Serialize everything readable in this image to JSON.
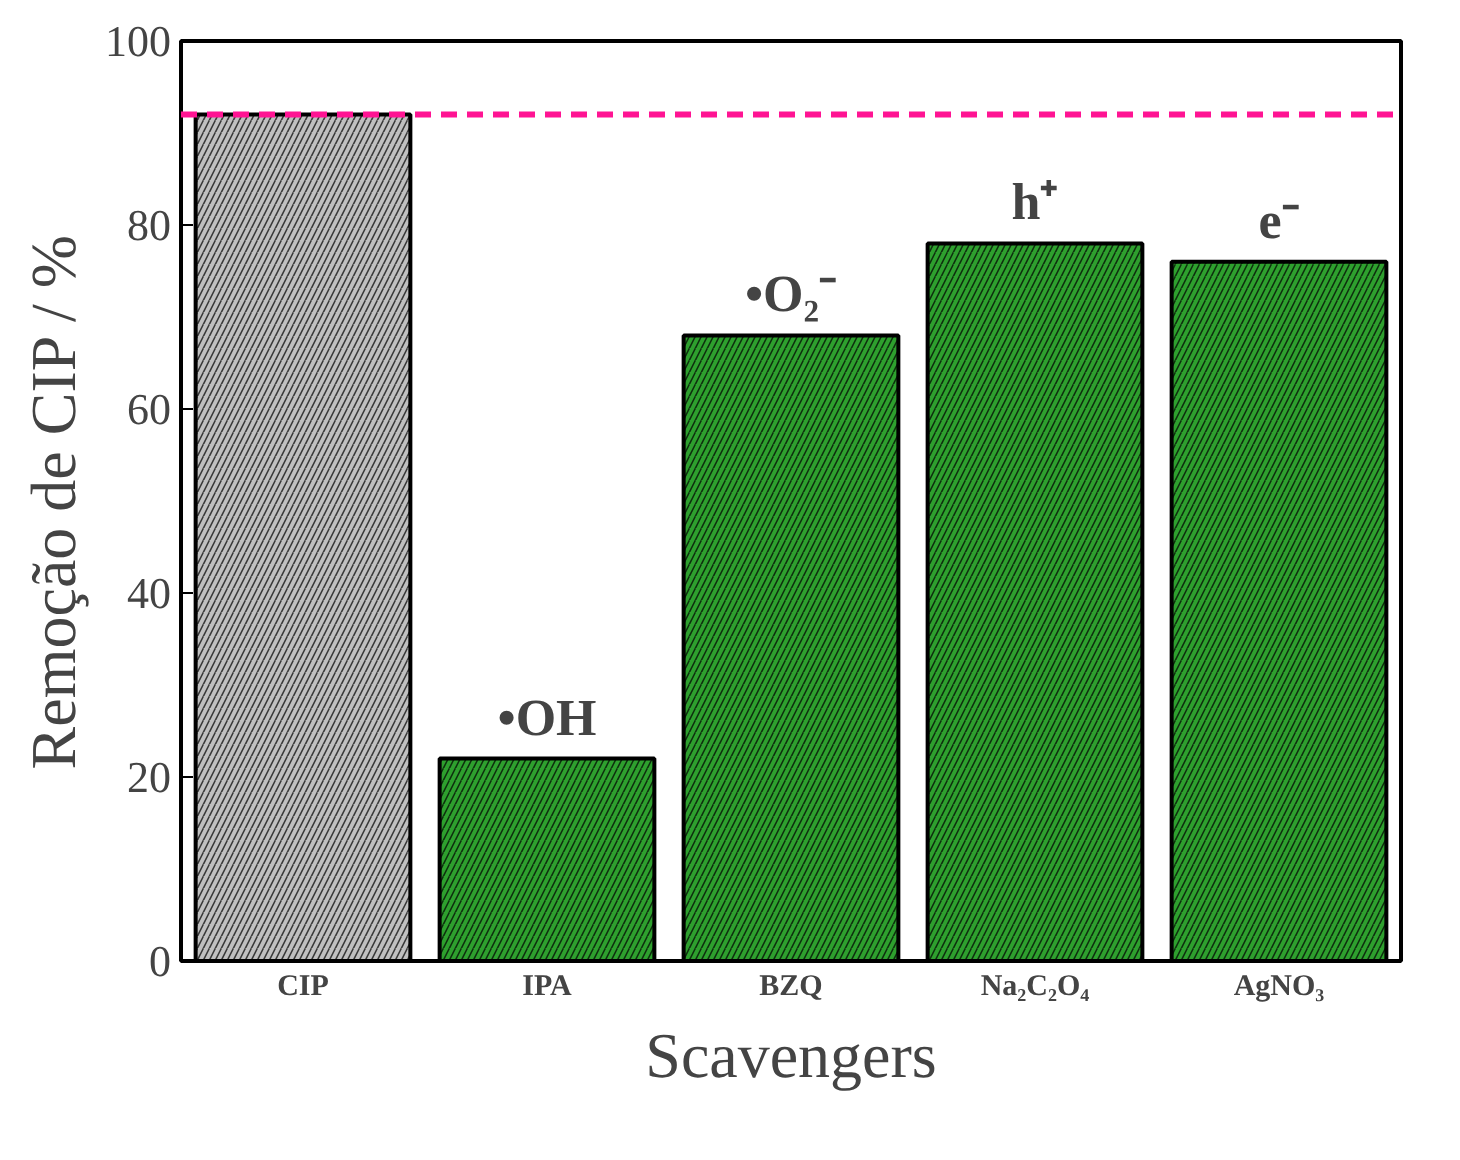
{
  "chart_data": {
    "type": "bar",
    "xlabel": "Scavengers",
    "ylabel": "Remoção de CIP / %",
    "categories": [
      "CIP",
      "IPA",
      "BZQ",
      "Na₂C₂O₄",
      "AgNO₃"
    ],
    "values": [
      92,
      22,
      68,
      78,
      76
    ],
    "colors": [
      "#c0c0c0",
      "#2ea02e",
      "#2ea02e",
      "#2ea02e",
      "#2ea02e"
    ],
    "ylim": [
      0,
      100
    ],
    "yticks": [
      0,
      20,
      40,
      60,
      80,
      100
    ],
    "grid": false,
    "ref_lines": [
      {
        "axis": "y",
        "value": 92,
        "color": "#ff1493",
        "line_style": "dashed"
      }
    ],
    "annotations": [
      {
        "text": "•OH",
        "x": "IPA",
        "y": 22
      },
      {
        "text": "•O₂⁻",
        "x": "BZQ",
        "y": 68
      },
      {
        "text": "h⁺",
        "x": "Na₂C₂O₄",
        "y": 78
      },
      {
        "text": "e⁻",
        "x": "AgNO₃",
        "y": 76
      }
    ]
  }
}
